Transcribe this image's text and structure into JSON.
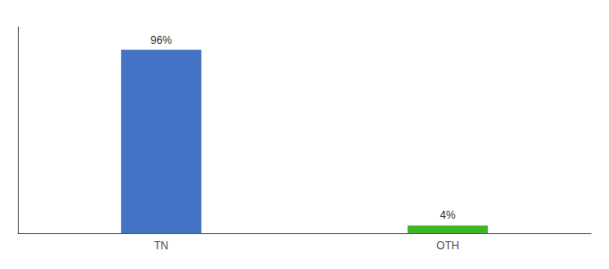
{
  "chart_data": {
    "type": "bar",
    "categories": [
      "TN",
      "OTH"
    ],
    "values": [
      96,
      4
    ],
    "value_labels": [
      "96%",
      "4%"
    ],
    "colors": [
      "#4472c4",
      "#3db528"
    ],
    "ylim": [
      0,
      108
    ],
    "data_labels": true,
    "tick_labels": "x",
    "grid": false
  }
}
